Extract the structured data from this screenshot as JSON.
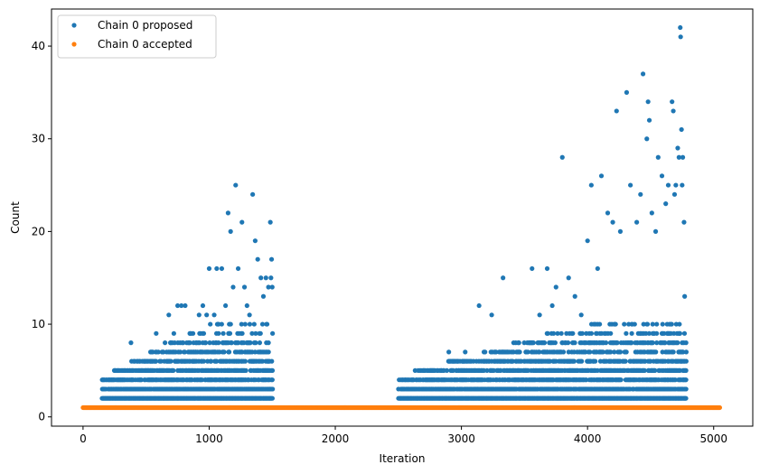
{
  "chart_data": {
    "type": "scatter",
    "title": "",
    "xlabel": "Iteration",
    "ylabel": "Count",
    "xlim": [
      -250,
      5310
    ],
    "ylim": [
      -1.0,
      44.0
    ],
    "xticks": [
      0,
      1000,
      2000,
      3000,
      4000,
      5000
    ],
    "yticks": [
      0,
      10,
      20,
      30,
      40
    ],
    "grid": false,
    "legend_position": "upper-left",
    "series": [
      {
        "name": "Chain 0 proposed",
        "color": "#1f77b4",
        "regions": [
          {
            "x_range": [
              150,
              1500
            ],
            "count_range": [
              2,
              10
            ],
            "per_iteration_levels": 1
          },
          {
            "x_range": [
              2500,
              4780
            ],
            "count_range": [
              2,
              10
            ],
            "per_iteration_levels": 1
          }
        ],
        "points": [
          {
            "x": 380,
            "y": 8
          },
          {
            "x": 520,
            "y": 5
          },
          {
            "x": 580,
            "y": 9
          },
          {
            "x": 650,
            "y": 8
          },
          {
            "x": 680,
            "y": 11
          },
          {
            "x": 720,
            "y": 9
          },
          {
            "x": 750,
            "y": 12
          },
          {
            "x": 780,
            "y": 12
          },
          {
            "x": 810,
            "y": 12
          },
          {
            "x": 850,
            "y": 9
          },
          {
            "x": 900,
            "y": 8
          },
          {
            "x": 920,
            "y": 11
          },
          {
            "x": 950,
            "y": 12
          },
          {
            "x": 980,
            "y": 11
          },
          {
            "x": 1000,
            "y": 16
          },
          {
            "x": 1040,
            "y": 11
          },
          {
            "x": 1060,
            "y": 16
          },
          {
            "x": 1100,
            "y": 16
          },
          {
            "x": 1130,
            "y": 12
          },
          {
            "x": 1150,
            "y": 22
          },
          {
            "x": 1170,
            "y": 20
          },
          {
            "x": 1190,
            "y": 14
          },
          {
            "x": 1210,
            "y": 25
          },
          {
            "x": 1230,
            "y": 16
          },
          {
            "x": 1260,
            "y": 21
          },
          {
            "x": 1280,
            "y": 14
          },
          {
            "x": 1300,
            "y": 12
          },
          {
            "x": 1320,
            "y": 11
          },
          {
            "x": 1345,
            "y": 24
          },
          {
            "x": 1365,
            "y": 19
          },
          {
            "x": 1385,
            "y": 17
          },
          {
            "x": 1410,
            "y": 15
          },
          {
            "x": 1430,
            "y": 13
          },
          {
            "x": 1450,
            "y": 15
          },
          {
            "x": 1470,
            "y": 14
          },
          {
            "x": 1485,
            "y": 21
          },
          {
            "x": 1495,
            "y": 17
          },
          {
            "x": 1490,
            "y": 15
          },
          {
            "x": 1500,
            "y": 14
          },
          {
            "x": 2900,
            "y": 7
          },
          {
            "x": 3030,
            "y": 7
          },
          {
            "x": 3140,
            "y": 12
          },
          {
            "x": 3240,
            "y": 11
          },
          {
            "x": 3330,
            "y": 15
          },
          {
            "x": 3450,
            "y": 8
          },
          {
            "x": 3560,
            "y": 16
          },
          {
            "x": 3620,
            "y": 11
          },
          {
            "x": 3680,
            "y": 16
          },
          {
            "x": 3720,
            "y": 12
          },
          {
            "x": 3750,
            "y": 14
          },
          {
            "x": 3800,
            "y": 28
          },
          {
            "x": 3850,
            "y": 15
          },
          {
            "x": 3900,
            "y": 13
          },
          {
            "x": 3950,
            "y": 11
          },
          {
            "x": 4000,
            "y": 19
          },
          {
            "x": 4030,
            "y": 25
          },
          {
            "x": 4080,
            "y": 16
          },
          {
            "x": 4110,
            "y": 26
          },
          {
            "x": 4160,
            "y": 22
          },
          {
            "x": 4200,
            "y": 21
          },
          {
            "x": 4230,
            "y": 33
          },
          {
            "x": 4260,
            "y": 20
          },
          {
            "x": 4310,
            "y": 35
          },
          {
            "x": 4340,
            "y": 25
          },
          {
            "x": 4390,
            "y": 21
          },
          {
            "x": 4420,
            "y": 24
          },
          {
            "x": 4440,
            "y": 37
          },
          {
            "x": 4470,
            "y": 30
          },
          {
            "x": 4480,
            "y": 34
          },
          {
            "x": 4490,
            "y": 32
          },
          {
            "x": 4510,
            "y": 22
          },
          {
            "x": 4540,
            "y": 20
          },
          {
            "x": 4560,
            "y": 28
          },
          {
            "x": 4590,
            "y": 26
          },
          {
            "x": 4620,
            "y": 23
          },
          {
            "x": 4640,
            "y": 25
          },
          {
            "x": 4670,
            "y": 34
          },
          {
            "x": 4680,
            "y": 33
          },
          {
            "x": 4690,
            "y": 24
          },
          {
            "x": 4700,
            "y": 25
          },
          {
            "x": 4715,
            "y": 29
          },
          {
            "x": 4725,
            "y": 28
          },
          {
            "x": 4735,
            "y": 42
          },
          {
            "x": 4738,
            "y": 41
          },
          {
            "x": 4745,
            "y": 31
          },
          {
            "x": 4750,
            "y": 25
          },
          {
            "x": 4755,
            "y": 28
          },
          {
            "x": 4765,
            "y": 21
          },
          {
            "x": 4770,
            "y": 13
          }
        ]
      },
      {
        "name": "Chain 0 accepted",
        "color": "#ff7f0e",
        "x_range": [
          0,
          5050
        ],
        "constant_value": 1
      }
    ]
  }
}
